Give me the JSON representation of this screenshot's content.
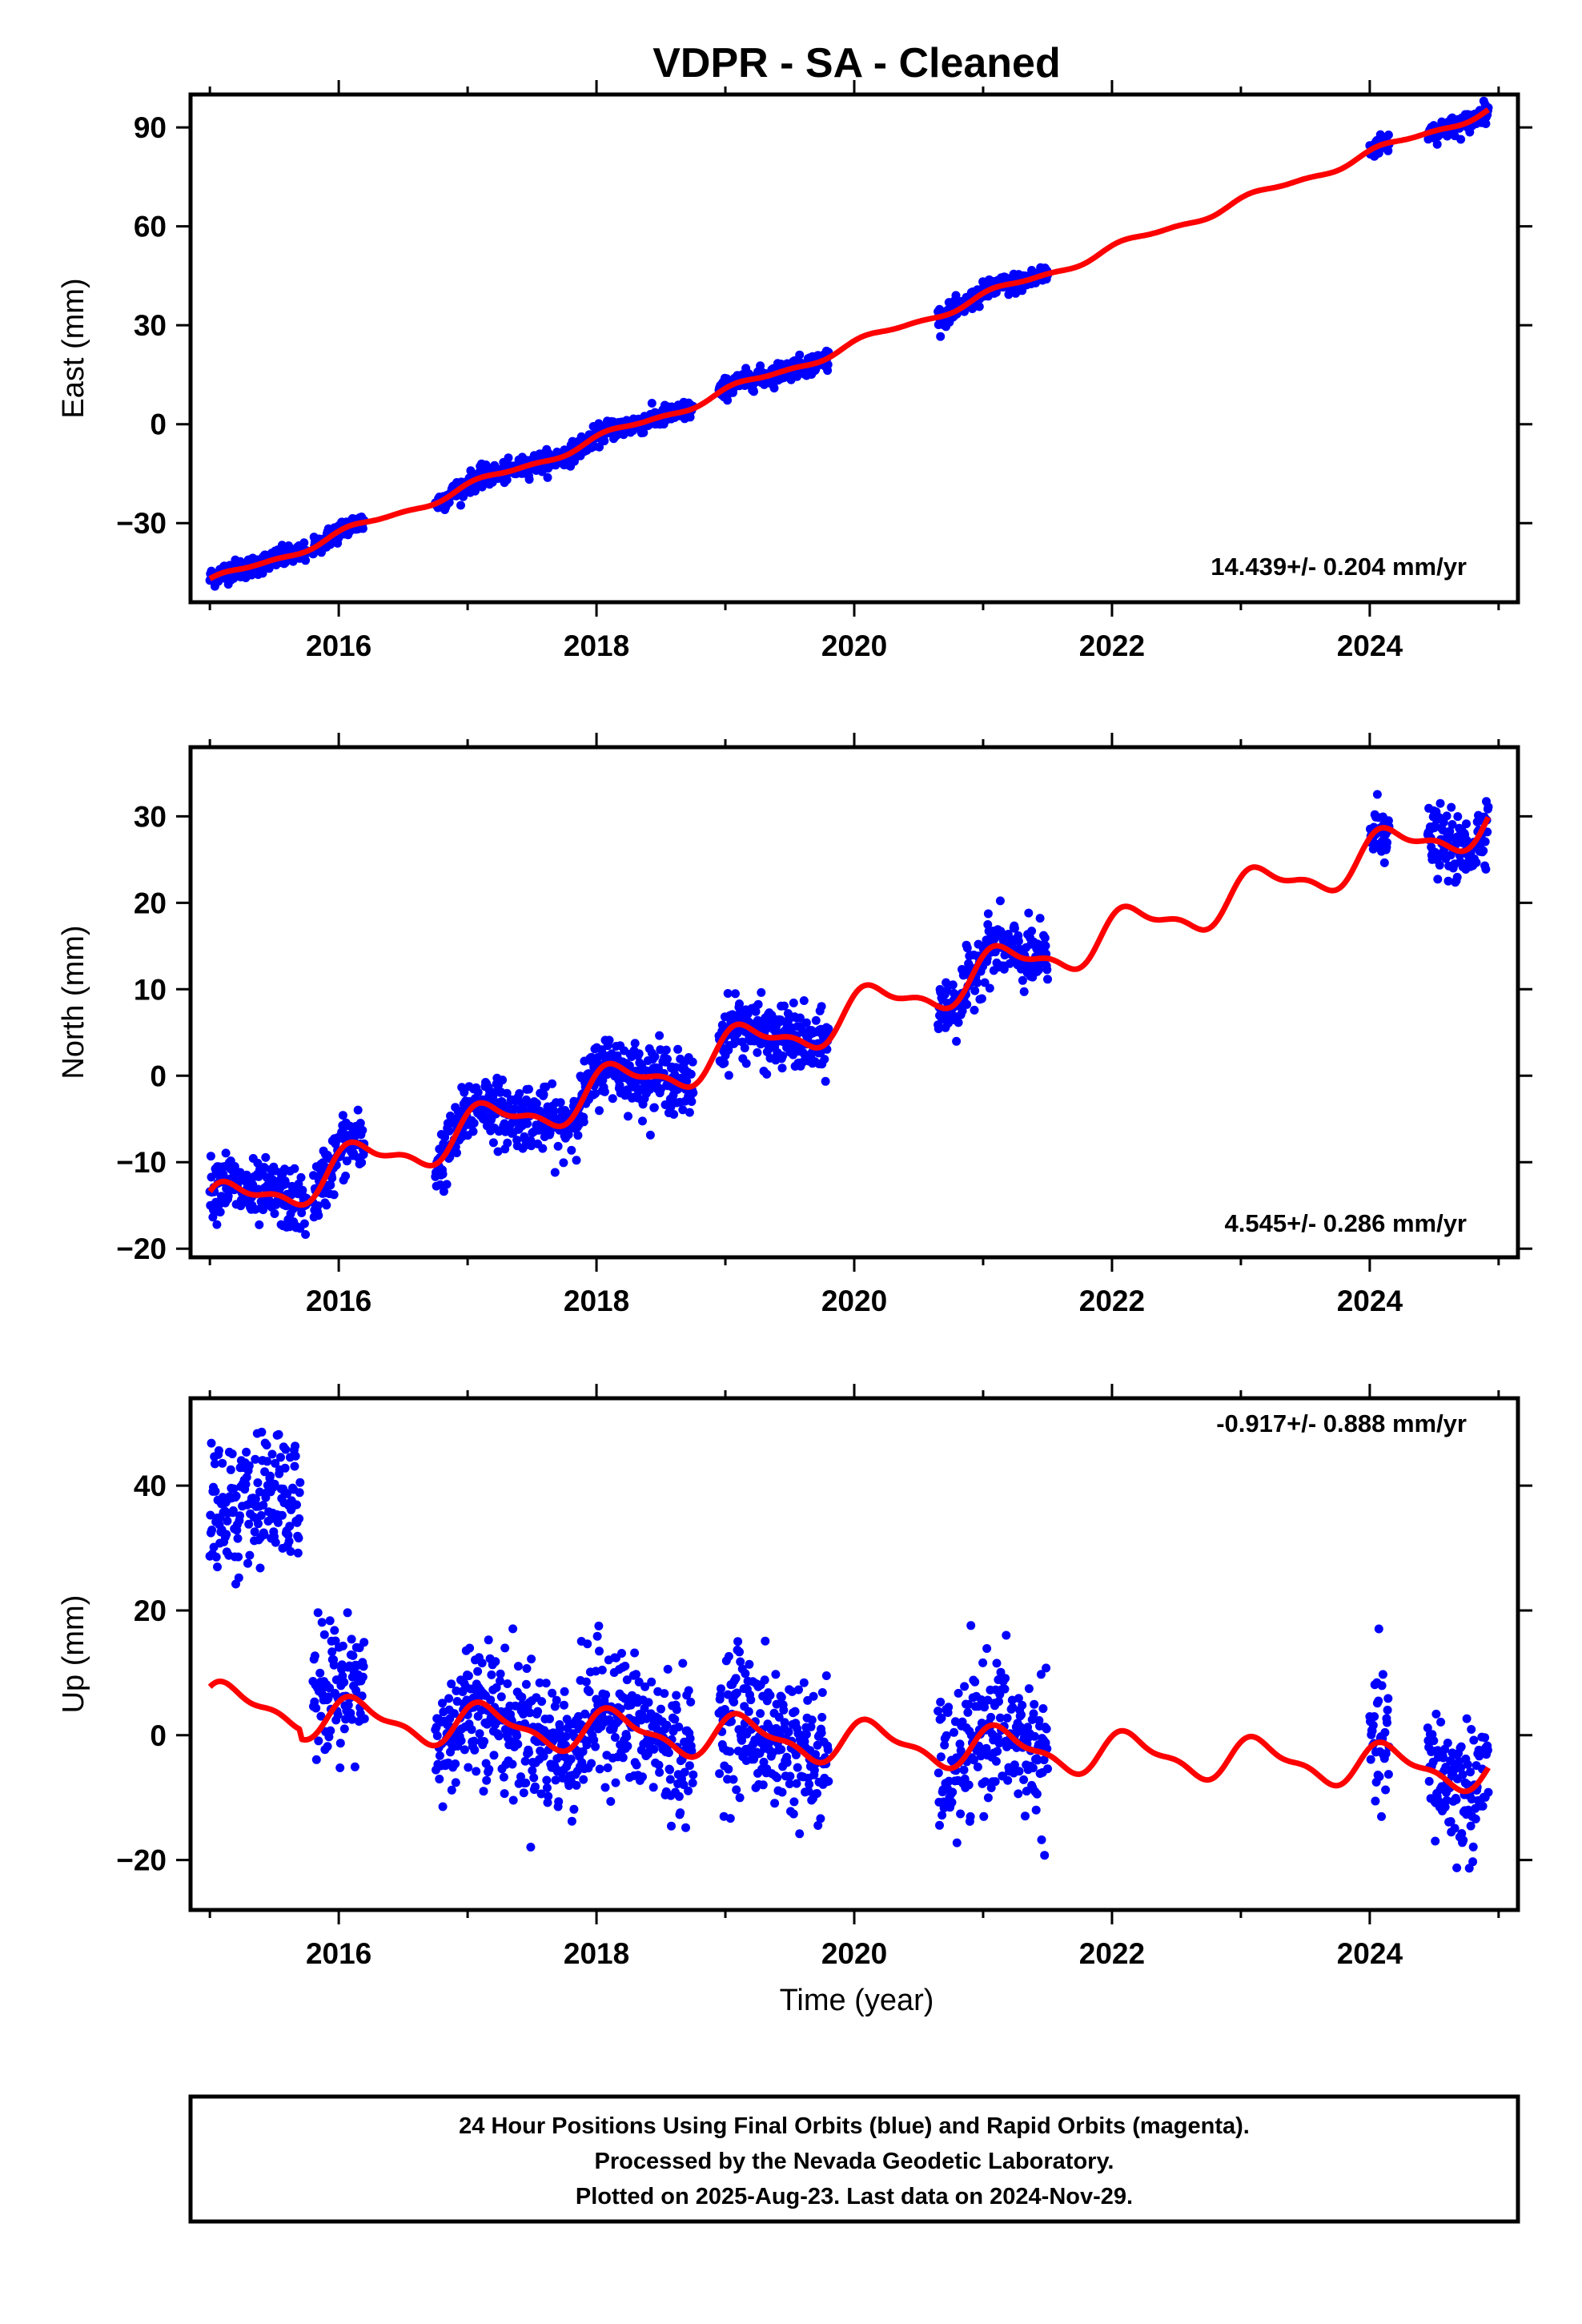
{
  "title": "VDPR  - SA - Cleaned",
  "xlabel": "Time (year)",
  "footer": {
    "line1": "24 Hour Positions Using Final Orbits (blue) and Rapid Orbits (magenta).",
    "line2": "Processed by the Nevada Geodetic Laboratory.",
    "line3": "Plotted on 2025-Aug-23. Last data on 2024-Nov-29."
  },
  "colors": {
    "data": "#0000ff",
    "model": "#ff0000",
    "axis": "#000000"
  },
  "chart_data": [
    {
      "type": "scatter",
      "ylabel": "East (mm)",
      "xlim": [
        2014.85,
        2025.15
      ],
      "ylim": [
        -54,
        100
      ],
      "xticks": [
        2016,
        2018,
        2020,
        2022,
        2024
      ],
      "yticks": [
        -30,
        0,
        30,
        60,
        90
      ],
      "rate_label": "14.439+/- 0.204 mm/yr",
      "rate_position": "bottom-right",
      "series": [
        {
          "kind": "points",
          "segments": [
            [
              2015.0,
              2015.75
            ],
            [
              2015.8,
              2016.2
            ],
            [
              2016.75,
              2018.75
            ],
            [
              2018.95,
              2019.8
            ],
            [
              2020.65,
              2021.5
            ],
            [
              2024.0,
              2024.15
            ],
            [
              2024.45,
              2024.92
            ]
          ],
          "trend_intercept_2015": -48.0,
          "trend_rate": 14.439,
          "seasonal_amplitude": 1.2,
          "scatter_sd": 1.5
        },
        {
          "kind": "line",
          "trend_intercept_2015": -48.0,
          "trend_rate": 14.439,
          "seasonal_amplitude": 1.2,
          "x_range": [
            2015.0,
            2024.92
          ]
        }
      ]
    },
    {
      "type": "scatter",
      "ylabel": "North (mm)",
      "xlim": [
        2014.85,
        2025.15
      ],
      "ylim": [
        -21,
        38
      ],
      "xticks": [
        2016,
        2018,
        2020,
        2022,
        2024
      ],
      "yticks": [
        -20,
        -10,
        0,
        10,
        20,
        30
      ],
      "rate_label": "4.545+/- 0.286 mm/yr",
      "rate_position": "bottom-right",
      "series": [
        {
          "kind": "points",
          "segments": [
            [
              2015.0,
              2015.75
            ],
            [
              2015.8,
              2016.2
            ],
            [
              2016.75,
              2018.75
            ],
            [
              2018.95,
              2019.8
            ],
            [
              2020.65,
              2021.5
            ],
            [
              2024.0,
              2024.15
            ],
            [
              2024.45,
              2024.92
            ]
          ],
          "trend_intercept_2015": -15.5,
          "trend_rate": 4.545,
          "seasonal_amplitude": 2.3,
          "scatter_sd": 1.8
        },
        {
          "kind": "line",
          "trend_intercept_2015": -15.5,
          "trend_rate": 4.545,
          "seasonal_amplitude": 2.3,
          "x_range": [
            2015.0,
            2024.92
          ]
        }
      ]
    },
    {
      "type": "scatter",
      "ylabel": "Up (mm)",
      "xlim": [
        2014.85,
        2025.15
      ],
      "ylim": [
        -28,
        54
      ],
      "xticks": [
        2016,
        2018,
        2020,
        2022,
        2024
      ],
      "yticks": [
        -20,
        0,
        20,
        40
      ],
      "rate_label": "-0.917+/- 0.888 mm/yr",
      "rate_position": "top-right",
      "series": [
        {
          "kind": "points",
          "segments": [
            [
              2015.0,
              2015.7
            ],
            [
              2015.8,
              2016.2
            ],
            [
              2016.75,
              2018.75
            ],
            [
              2018.95,
              2019.8
            ],
            [
              2020.65,
              2021.5
            ],
            [
              2024.0,
              2024.15
            ],
            [
              2024.45,
              2024.92
            ]
          ],
          "offsets": [
            {
              "range": [
                2015.0,
                2015.7
              ],
              "mean": 37
            },
            {
              "range": [
                2015.8,
                2016.2
              ],
              "mean": 8
            }
          ],
          "trend_intercept_2015": 3.5,
          "trend_rate": -0.917,
          "seasonal_amplitude": 3.0,
          "scatter_sd": 5.5
        },
        {
          "kind": "line",
          "trend_intercept_2015": 3.5,
          "trend_rate": -0.917,
          "seasonal_amplitude": 3.0,
          "x_range": [
            2015.0,
            2024.92
          ]
        }
      ]
    }
  ]
}
